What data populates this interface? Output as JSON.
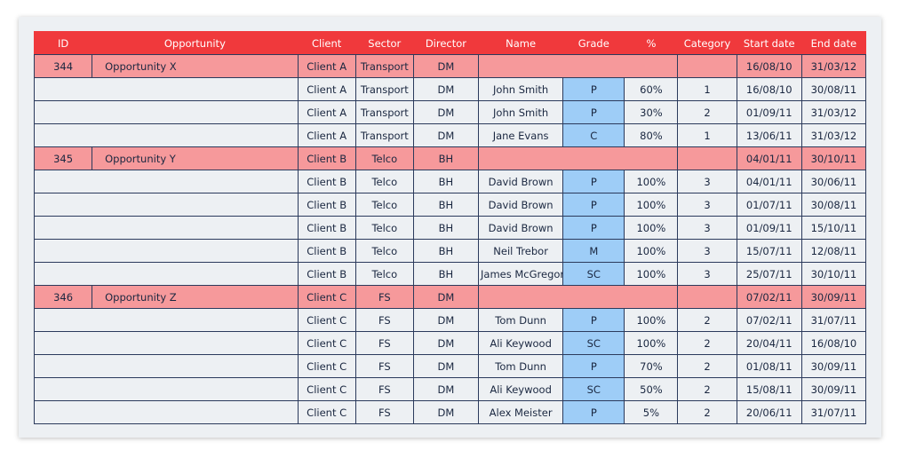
{
  "columns": [
    "ID",
    "Opportunity",
    "Client",
    "Sector",
    "Director",
    "Name",
    "Grade",
    "%",
    "Category",
    "Start date",
    "End date"
  ],
  "groups": [
    {
      "id": "344",
      "opportunity": "Opportunity  X",
      "client": "Client A",
      "sector": "Transport",
      "director": "DM",
      "start": "16/08/10",
      "end": "31/03/12",
      "items": [
        {
          "client": "Client A",
          "sector": "Transport",
          "director": "DM",
          "name": "John Smith",
          "grade": "P",
          "pct": "60%",
          "category": "1",
          "start": "16/08/10",
          "end": "30/08/11"
        },
        {
          "client": "Client A",
          "sector": "Transport",
          "director": "DM",
          "name": "John Smith",
          "grade": "P",
          "pct": "30%",
          "category": "2",
          "start": "01/09/11",
          "end": "31/03/12"
        },
        {
          "client": "Client A",
          "sector": "Transport",
          "director": "DM",
          "name": "Jane Evans",
          "grade": "C",
          "pct": "80%",
          "category": "1",
          "start": "13/06/11",
          "end": "31/03/12"
        }
      ]
    },
    {
      "id": "345",
      "opportunity": "Opportunity Y",
      "client": "Client B",
      "sector": "Telco",
      "director": "BH",
      "start": "04/01/11",
      "end": "30/10/11",
      "items": [
        {
          "client": "Client B",
          "sector": "Telco",
          "director": "BH",
          "name": "David Brown",
          "grade": "P",
          "pct": "100%",
          "category": "3",
          "start": "04/01/11",
          "end": "30/06/11"
        },
        {
          "client": "Client B",
          "sector": "Telco",
          "director": "BH",
          "name": "David Brown",
          "grade": "P",
          "pct": "100%",
          "category": "3",
          "start": "01/07/11",
          "end": "30/08/11"
        },
        {
          "client": "Client B",
          "sector": "Telco",
          "director": "BH",
          "name": "David Brown",
          "grade": "P",
          "pct": "100%",
          "category": "3",
          "start": "01/09/11",
          "end": "15/10/11"
        },
        {
          "client": "Client B",
          "sector": "Telco",
          "director": "BH",
          "name": "Neil Trebor",
          "grade": "M",
          "pct": "100%",
          "category": "3",
          "start": "15/07/11",
          "end": "12/08/11"
        },
        {
          "client": "Client B",
          "sector": "Telco",
          "director": "BH",
          "name": "James McGregor",
          "grade": "SC",
          "pct": "100%",
          "category": "3",
          "start": "25/07/11",
          "end": "30/10/11"
        }
      ]
    },
    {
      "id": "346",
      "opportunity": "Opportunity  Z",
      "client": "Client C",
      "sector": "FS",
      "director": "DM",
      "start": "07/02/11",
      "end": "30/09/11",
      "items": [
        {
          "client": "Client C",
          "sector": "FS",
          "director": "DM",
          "name": "Tom Dunn",
          "grade": "P",
          "pct": "100%",
          "category": "2",
          "start": "07/02/11",
          "end": "31/07/11"
        },
        {
          "client": "Client C",
          "sector": "FS",
          "director": "DM",
          "name": "Ali Keywood",
          "grade": "SC",
          "pct": "100%",
          "category": "2",
          "start": "20/04/11",
          "end": "16/08/10"
        },
        {
          "client": "Client C",
          "sector": "FS",
          "director": "DM",
          "name": "Tom Dunn",
          "grade": "P",
          "pct": "70%",
          "category": "2",
          "start": "01/08/11",
          "end": "30/09/11"
        },
        {
          "client": "Client C",
          "sector": "FS",
          "director": "DM",
          "name": "Ali Keywood",
          "grade": "SC",
          "pct": "50%",
          "category": "2",
          "start": "15/08/11",
          "end": "30/09/11"
        },
        {
          "client": "Client C",
          "sector": "FS",
          "director": "DM",
          "name": "Alex Meister",
          "grade": "P",
          "pct": "5%",
          "category": "2",
          "start": "20/06/11",
          "end": "31/07/11"
        }
      ]
    }
  ],
  "colors": {
    "header": "#f0393c",
    "group_row": "#f6999b",
    "item_row": "#edf0f3",
    "grade_cell": "#9ecdf7",
    "border": "#2b3a5c"
  }
}
